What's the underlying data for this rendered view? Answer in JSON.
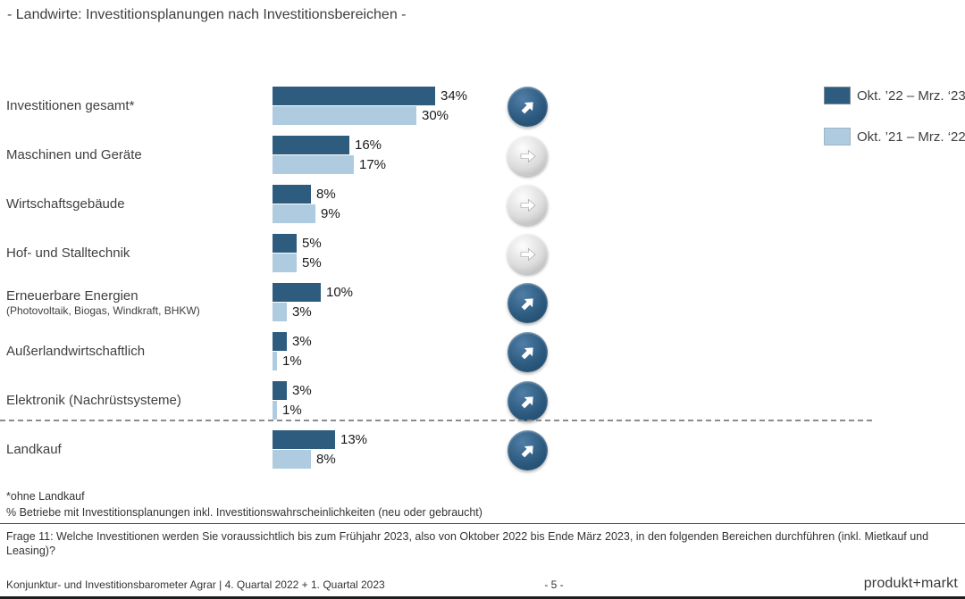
{
  "title": "- Landwirte: Investitionsplanungen nach Investitionsbereichen -",
  "colors": {
    "series1": "#2E5C7E",
    "series2": "#AECBDF",
    "trend_up_circle": "#2d5a7f",
    "trend_right_circle": "#c9c9c9",
    "text": "#404040"
  },
  "legend": [
    {
      "label": "Okt. ’22 – Mrz. ‘23",
      "color": "#2E5C7E"
    },
    {
      "label": "Okt. ’21 – Mrz. ‘22",
      "color": "#AECBDF"
    }
  ],
  "chart_data": {
    "type": "bar",
    "orientation": "horizontal",
    "unit": "%",
    "xlim": [
      0,
      40
    ],
    "grid": false,
    "legend_position": "top-right",
    "series": [
      {
        "name": "Okt. ’22 – Mrz. ‘23",
        "color": "#2E5C7E"
      },
      {
        "name": "Okt. ’21 – Mrz. ‘22",
        "color": "#AECBDF"
      }
    ],
    "rows": [
      {
        "label": "Investitionen gesamt*",
        "sublabel": "",
        "values": [
          34,
          30
        ],
        "display": [
          "34%",
          "30%"
        ],
        "trend": "up"
      },
      {
        "label": "Maschinen und Geräte",
        "sublabel": "",
        "values": [
          16,
          17
        ],
        "display": [
          "16%",
          "17%"
        ],
        "trend": "right"
      },
      {
        "label": "Wirtschaftsgebäude",
        "sublabel": "",
        "values": [
          8,
          9
        ],
        "display": [
          "8%",
          "9%"
        ],
        "trend": "right"
      },
      {
        "label": "Hof- und Stalltechnik",
        "sublabel": "",
        "values": [
          5,
          5
        ],
        "display": [
          "5%",
          "5%"
        ],
        "trend": "right"
      },
      {
        "label": "Erneuerbare Energien",
        "sublabel": "(Photovoltaik, Biogas, Windkraft, BHKW)",
        "values": [
          10,
          3
        ],
        "display": [
          "10%",
          "3%"
        ],
        "trend": "up"
      },
      {
        "label": "Außerlandwirtschaftlich",
        "sublabel": "",
        "values": [
          3,
          1
        ],
        "display": [
          "3%",
          "1%"
        ],
        "trend": "up"
      },
      {
        "label": "Elektronik (Nachrüstsysteme)",
        "sublabel": "",
        "values": [
          3,
          1
        ],
        "display": [
          "3%",
          "1%"
        ],
        "trend": "up"
      },
      {
        "label": "Landkauf",
        "sublabel": "",
        "values": [
          13,
          8
        ],
        "display": [
          "13%",
          "8%"
        ],
        "trend": "up",
        "separated": true
      }
    ]
  },
  "footnotes": [
    "*ohne Landkauf",
    "% Betriebe mit Investitionsplanungen inkl. Investitionswahrscheinlichkeiten (neu oder gebraucht)"
  ],
  "question": "Frage 11: Welche Investitionen werden Sie voraussichtlich bis zum Frühjahr 2023, also von Oktober 2022 bis Ende März 2023, in den folgenden Bereichen durchführen (inkl. Mietkauf und Leasing)?",
  "footer": {
    "source": "Konjunktur- und Investitionsbarometer Agrar | 4. Quartal 2022 + 1. Quartal 2023",
    "page": "- 5 -",
    "logo": "produkt+markt"
  }
}
